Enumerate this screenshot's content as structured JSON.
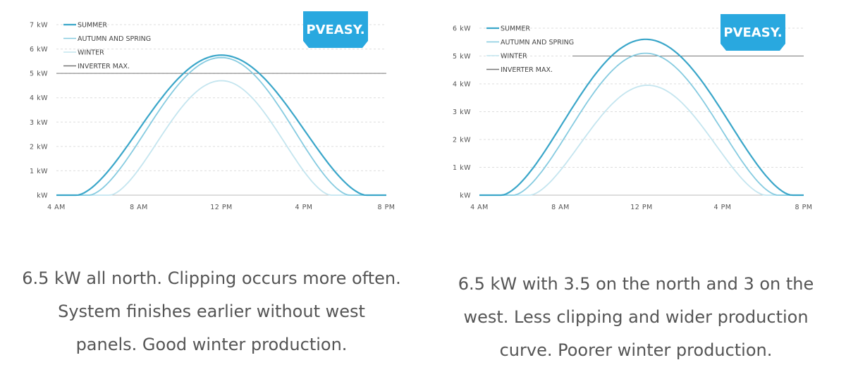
{
  "brand": {
    "logo_text": "PVEASY.",
    "logo_color": "#29a8df"
  },
  "legend_labels": [
    "SUMMER",
    "AUTUMN AND SPRING",
    "WINTER",
    "INVERTER MAX."
  ],
  "chart_data": [
    {
      "type": "line",
      "title": "",
      "xlabel": "",
      "ylabel": "",
      "x_tick_labels": [
        "4 AM",
        "8 AM",
        "12 PM",
        "4 PM",
        "8 PM"
      ],
      "x_ticks_hours": [
        4,
        8,
        12,
        16,
        20
      ],
      "xlim": [
        4,
        20
      ],
      "y_tick_labels": [
        "kW",
        "1 kW",
        "2 kW",
        "3 kW",
        "4 kW",
        "5 kW",
        "6 kW",
        "7 kW"
      ],
      "y_ticks": [
        0,
        1,
        2,
        3,
        4,
        5,
        6,
        7
      ],
      "ylim": [
        0,
        7
      ],
      "grid": true,
      "series": [
        {
          "name": "SUMMER",
          "color": "#3aa6c9",
          "width": 2.2,
          "peak_hour": 12,
          "peak_kw": 5.75,
          "start_hour": 5.0,
          "end_hour": 19.0
        },
        {
          "name": "AUTUMN AND SPRING",
          "color": "#86cbe0",
          "width": 1.8,
          "peak_hour": 12,
          "peak_kw": 5.65,
          "start_hour": 5.6,
          "end_hour": 18.2
        },
        {
          "name": "WINTER",
          "color": "#c4e5ef",
          "width": 1.8,
          "peak_hour": 12,
          "peak_kw": 4.7,
          "start_hour": 6.6,
          "end_hour": 17.3
        }
      ],
      "inverter_max_kw": 5.0,
      "inverter_color": "#777777",
      "caption": [
        "6.5 kW all north. Clipping occurs more often.",
        "System finishes earlier without west",
        "panels. Good winter production."
      ]
    },
    {
      "type": "line",
      "title": "",
      "xlabel": "",
      "ylabel": "",
      "x_tick_labels": [
        "4 AM",
        "8 AM",
        "12 PM",
        "4 PM",
        "8 PM"
      ],
      "x_ticks_hours": [
        4,
        8,
        12,
        16,
        20
      ],
      "xlim": [
        4,
        20
      ],
      "y_tick_labels": [
        "kW",
        "1 kW",
        "2 kW",
        "3 kW",
        "4 kW",
        "5 kW",
        "6 kW"
      ],
      "y_ticks": [
        0,
        1,
        2,
        3,
        4,
        5,
        6
      ],
      "ylim": [
        0,
        6
      ],
      "grid": true,
      "series": [
        {
          "name": "SUMMER",
          "color": "#3aa6c9",
          "width": 2.2,
          "peak_hour": 12.2,
          "peak_kw": 5.6,
          "start_hour": 5.1,
          "end_hour": 19.4
        },
        {
          "name": "AUTUMN AND SPRING",
          "color": "#86cbe0",
          "width": 1.8,
          "peak_hour": 12.2,
          "peak_kw": 5.1,
          "start_hour": 5.7,
          "end_hour": 18.7
        },
        {
          "name": "WINTER",
          "color": "#c4e5ef",
          "width": 1.8,
          "peak_hour": 12.3,
          "peak_kw": 3.95,
          "start_hour": 6.5,
          "end_hour": 18.1
        }
      ],
      "inverter_max_kw": 5.0,
      "inverter_color": "#777777",
      "caption": [
        "6.5 kW with 3.5 on the north and 3 on the",
        "west. Less clipping and wider production",
        "curve. Poorer winter production."
      ]
    }
  ]
}
